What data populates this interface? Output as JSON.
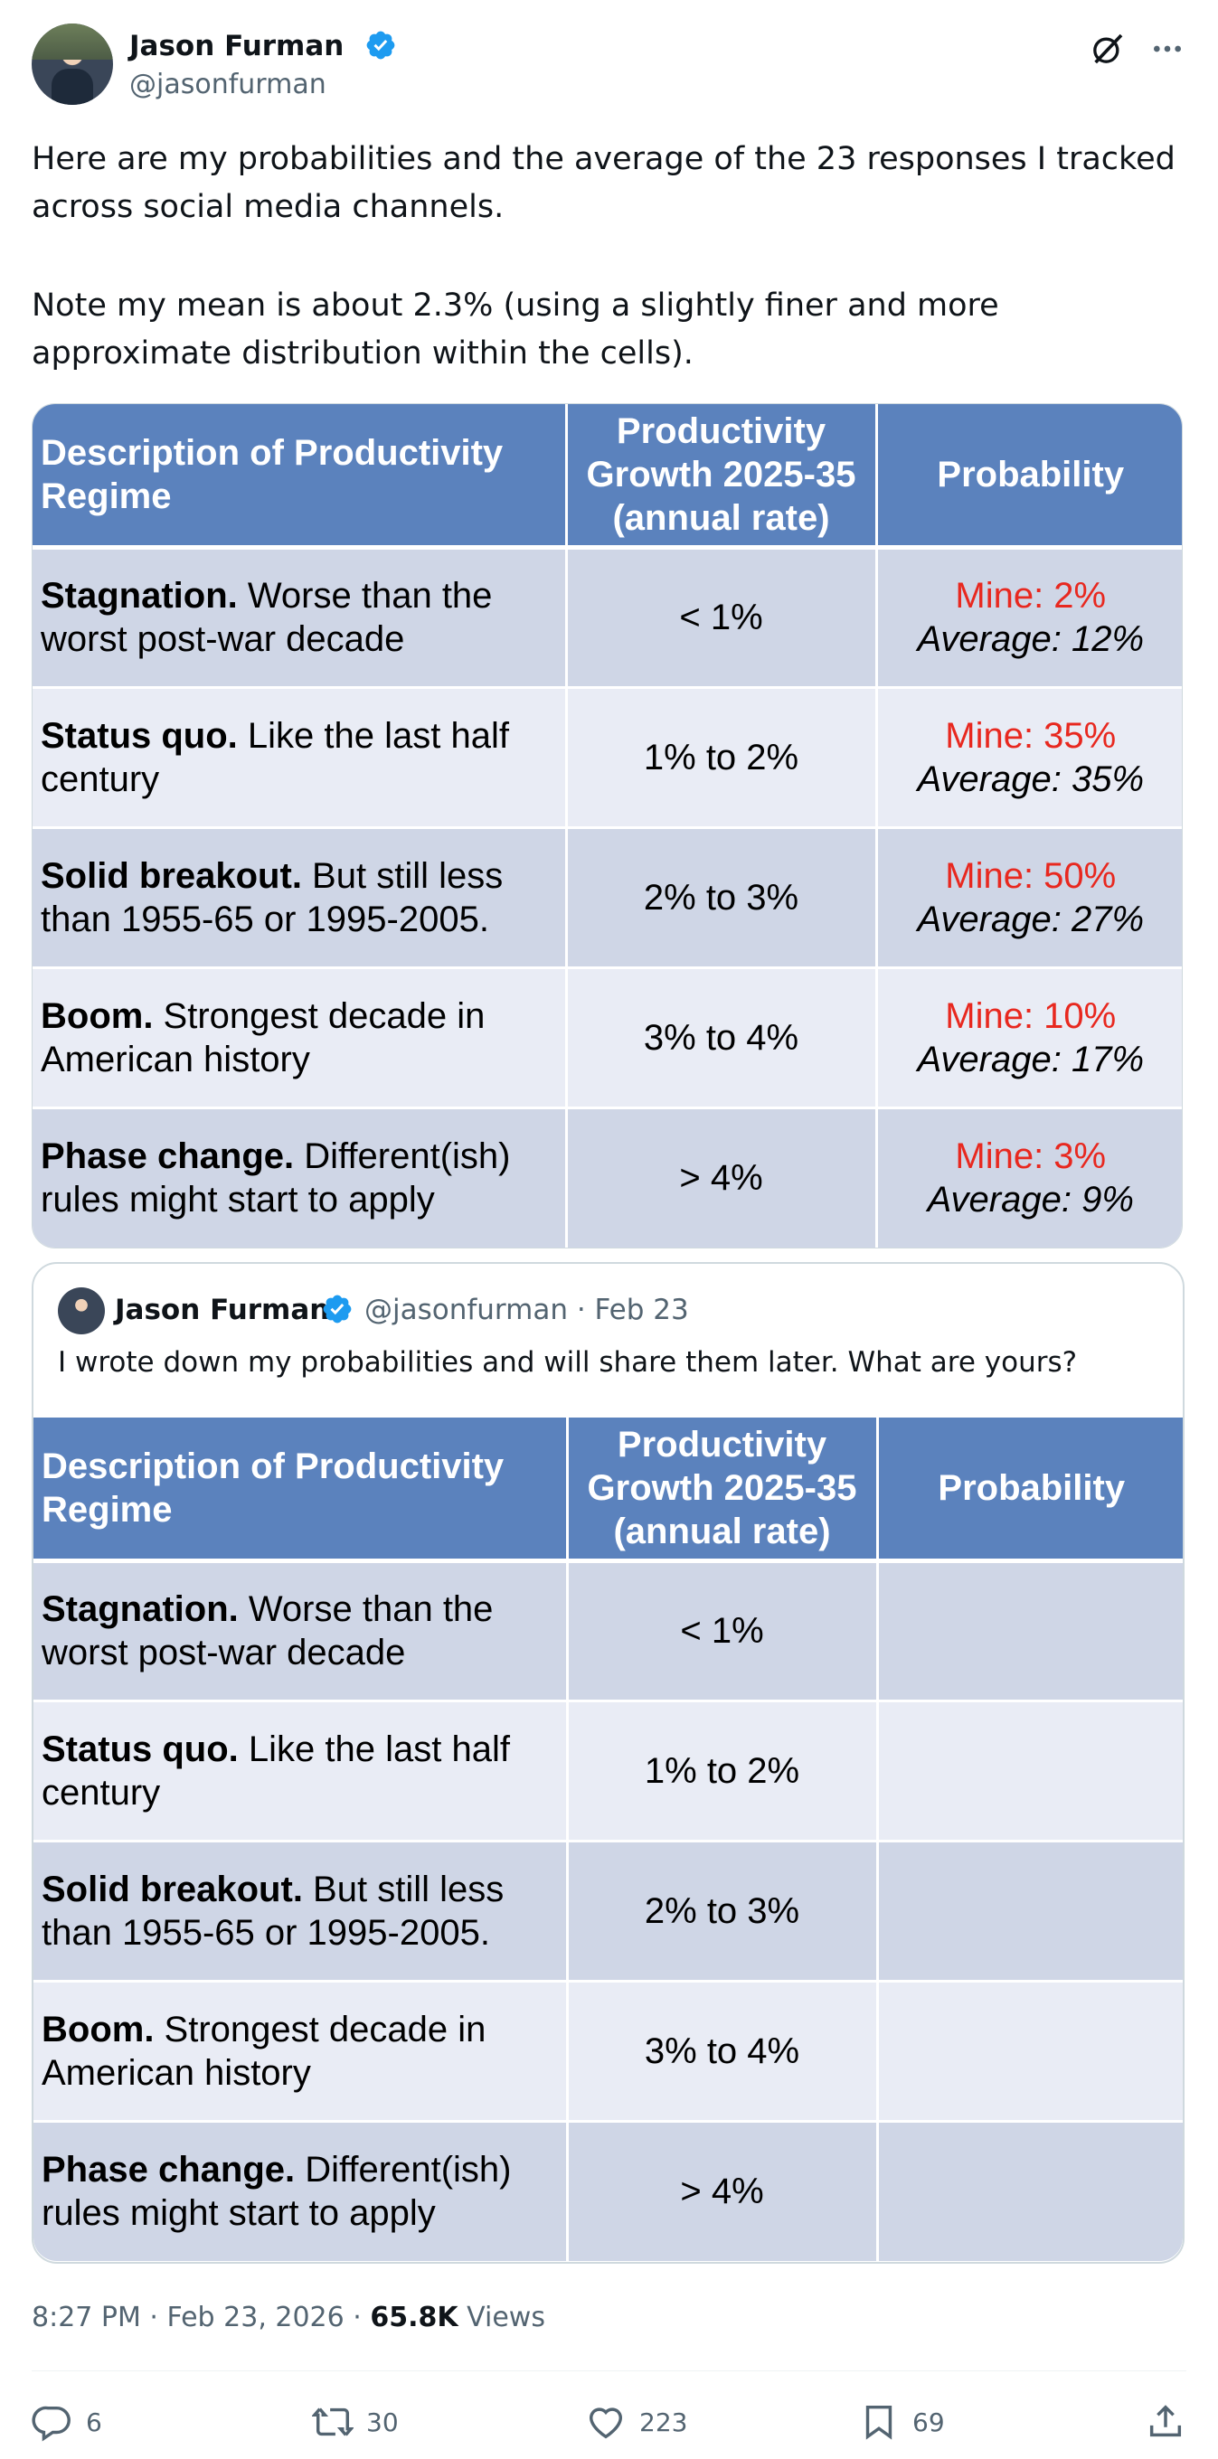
{
  "author": {
    "name": "Jason Furman",
    "handle": "@jasonfurman",
    "verified": true
  },
  "icons": {
    "verified": "verified-badge-icon",
    "grok": "grok-icon",
    "more": "more-options-icon",
    "reply": "reply-icon",
    "retweet": "retweet-icon",
    "like": "like-icon",
    "bookmark": "bookmark-icon",
    "share": "share-icon"
  },
  "colors": {
    "header": "#5b82bd",
    "row_dark": "#cfd6e6",
    "row_light": "#e9ecf5",
    "mine": "#e8281f",
    "verified": "#1d9bf0"
  },
  "tweet": {
    "paragraph1": "Here are my probabilities and the average of the 23 responses I tracked across social media channels.",
    "paragraph2": "Note my mean is about 2.3% (using a slightly finer and more approximate distribution within the cells)."
  },
  "table": {
    "headers": {
      "description": "Description of Productivity Regime",
      "growth": "Productivity Growth 2025-35 (annual rate)",
      "probability": "Probability"
    },
    "rows": [
      {
        "label": "Stagnation.",
        "desc": " Worse than the worst post-war decade",
        "rate": "< 1%",
        "mine": "Mine: 2%",
        "average": "Average: 12%"
      },
      {
        "label": "Status quo.",
        "desc": " Like the last half century",
        "rate": "1% to 2%",
        "mine": "Mine: 35%",
        "average": "Average: 35%"
      },
      {
        "label": "Solid breakout.",
        "desc": " But still less than 1955-65 or 1995-2005.",
        "rate": "2% to 3%",
        "mine": "Mine: 50%",
        "average": "Average: 27%"
      },
      {
        "label": "Boom.",
        "desc": " Strongest decade in American history",
        "rate": "3% to 4%",
        "mine": "Mine: 10%",
        "average": "Average: 17%"
      },
      {
        "label": "Phase change.",
        "desc": " Different(ish) rules might start to apply",
        "rate": "> 4%",
        "mine": "Mine: 3%",
        "average": "Average: 9%"
      }
    ]
  },
  "quote": {
    "name": "Jason Furman",
    "meta": "@jasonfurman · Feb 23",
    "text": "I wrote down my probabilities and will share them later. What are yours?",
    "headers": {
      "description": "Description of Productivity Regime",
      "growth": "Productivity Growth 2025-35 (annual rate)",
      "probability": "Probability"
    },
    "rows": [
      {
        "label": "Stagnation.",
        "desc": " Worse than the worst post-war decade",
        "rate": "< 1%"
      },
      {
        "label": "Status quo.",
        "desc": " Like the last half century",
        "rate": "1% to 2%"
      },
      {
        "label": "Solid breakout.",
        "desc": " But still less than 1955-65 or 1995-2005.",
        "rate": "2% to 3%"
      },
      {
        "label": "Boom.",
        "desc": " Strongest decade in American history",
        "rate": "3% to 4%"
      },
      {
        "label": "Phase change.",
        "desc": " Different(ish) rules might start to apply",
        "rate": "> 4%"
      }
    ]
  },
  "footer": {
    "time": "8:27 PM · Feb 23, 2026 · ",
    "views_count": "65.8K",
    "views_label": " Views",
    "replies": "6",
    "retweets": "30",
    "likes": "223",
    "bookmarks": "69"
  }
}
